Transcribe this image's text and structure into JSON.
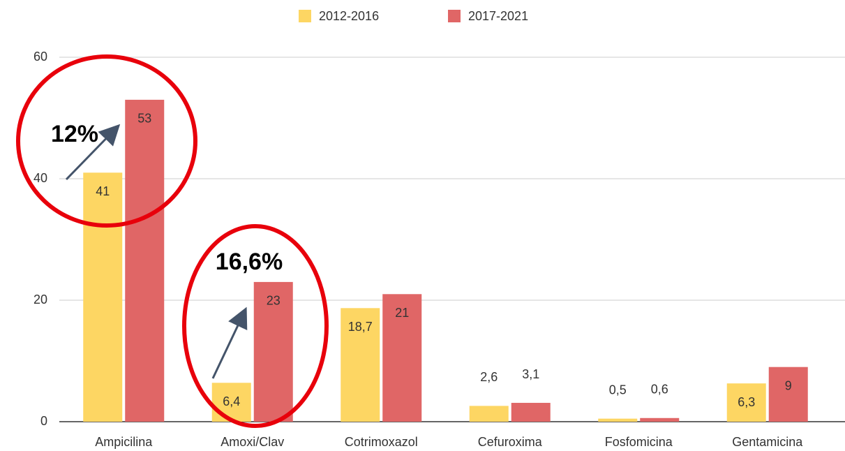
{
  "chart_data": {
    "type": "bar",
    "categories": [
      "Ampicilina",
      "Amoxi/Clav",
      "Cotrimoxazol",
      "Cefuroxima",
      "Fosfomicina",
      "Gentamicina"
    ],
    "series": [
      {
        "name": "2012-2016",
        "color": "#fdd663",
        "values": [
          41,
          6.4,
          18.7,
          2.6,
          0.5,
          6.3
        ],
        "value_labels": [
          "41",
          "6,4",
          "18,7",
          "2,6",
          "0,5",
          "6,3"
        ]
      },
      {
        "name": "2017-2021",
        "color": "#e06666",
        "values": [
          53,
          23,
          21,
          3.1,
          0.6,
          9
        ],
        "value_labels": [
          "53",
          "23",
          "21",
          "3,1",
          "0,6",
          "9"
        ]
      }
    ],
    "ylim": [
      0,
      60
    ],
    "yticks": [
      0,
      20,
      40,
      60
    ],
    "grid": true,
    "legend": "top",
    "annotations": [
      "12%",
      "16,6%"
    ]
  }
}
